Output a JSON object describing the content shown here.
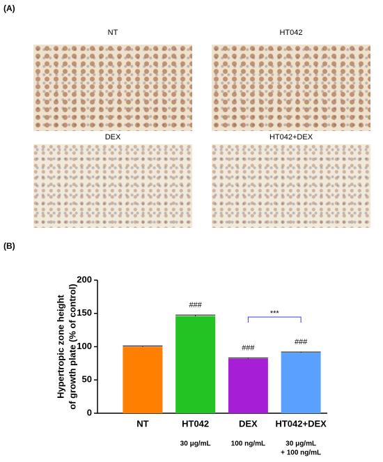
{
  "panels": {
    "a": {
      "label": "(A)",
      "images": [
        {
          "caption": "NT"
        },
        {
          "caption": "HT042"
        },
        {
          "caption": "DEX"
        },
        {
          "caption": "HT042+DEX"
        }
      ]
    },
    "b": {
      "label": "(B)"
    }
  },
  "chart_data": {
    "type": "bar",
    "ylabel": [
      "Hypertropic zone height",
      "of growth plate (% of control)"
    ],
    "categories": [
      "NT",
      "HT042",
      "DEX",
      "HT042+DEX"
    ],
    "values": [
      100,
      146,
      82,
      91
    ],
    "errors": [
      1,
      1.5,
      1,
      1
    ],
    "colors": [
      "#ff8000",
      "#22c322",
      "#a61ed6",
      "#5aa0ff"
    ],
    "annotations": [
      null,
      "###",
      "###",
      "###"
    ],
    "doses": [
      [],
      [
        "30 μg/mL"
      ],
      [
        "100 ng/mL"
      ],
      [
        "30 μg/mL",
        "+ 100 ng/mL"
      ]
    ],
    "significance": {
      "between": [
        "DEX",
        "HT042+DEX"
      ],
      "label": "***",
      "color": "#3a3ad0"
    },
    "ylim": [
      0,
      200
    ],
    "yticks": [
      0,
      50,
      100,
      150,
      200
    ]
  }
}
